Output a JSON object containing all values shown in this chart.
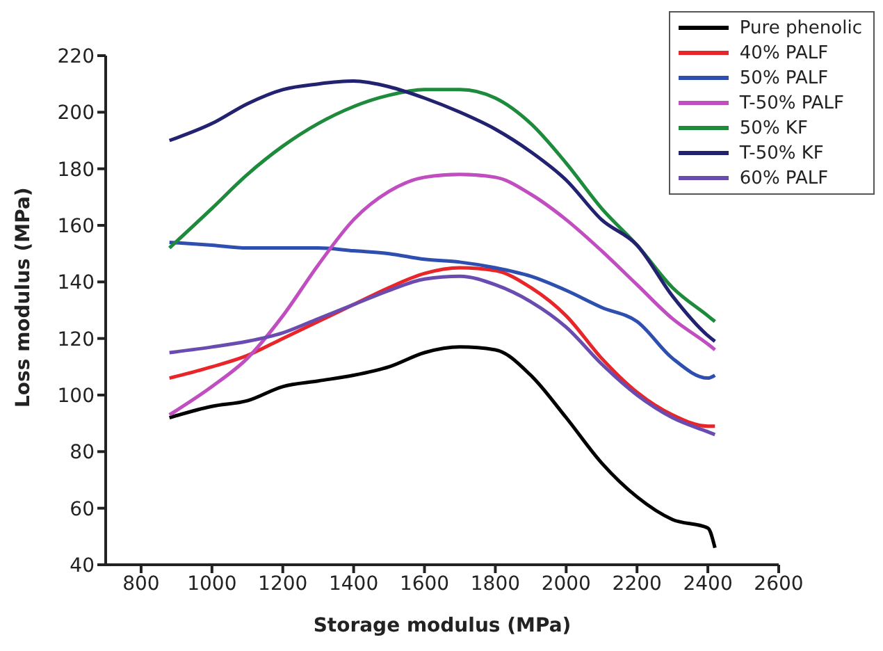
{
  "chart_data": {
    "type": "line",
    "xlabel": "Storage  modulus (MPa)",
    "ylabel": "Loss modulus (MPa)",
    "xlim": [
      700,
      2600
    ],
    "xticks": [
      800,
      1000,
      1200,
      1400,
      1600,
      1800,
      2000,
      2200,
      2400,
      2600
    ],
    "ylim": [
      40,
      220
    ],
    "yticks": [
      40,
      60,
      80,
      100,
      120,
      140,
      160,
      180,
      200,
      220
    ],
    "legend": "top right",
    "x": [
      880,
      1000,
      1100,
      1200,
      1300,
      1400,
      1500,
      1600,
      1700,
      1800,
      1900,
      2000,
      2100,
      2200,
      2300,
      2400,
      2420
    ],
    "series": [
      {
        "name": "Pure phenolic",
        "color": "#000000",
        "values": [
          92,
          96,
          98,
          103,
          105,
          107,
          110,
          115,
          117,
          116,
          107,
          92,
          76,
          64,
          56,
          53,
          46
        ]
      },
      {
        "name": "40% PALF",
        "color": "#e8262a",
        "values": [
          106,
          110,
          114,
          120,
          126,
          132,
          138,
          143,
          145,
          144,
          138,
          128,
          113,
          101,
          93,
          89,
          89
        ]
      },
      {
        "name": "50% PALF",
        "color": "#2e4eb0",
        "values": [
          154,
          153,
          152,
          152,
          152,
          151,
          150,
          148,
          147,
          145,
          142,
          137,
          131,
          126,
          113,
          106,
          107
        ]
      },
      {
        "name": "T-50% PALF",
        "color": "#c04ec0",
        "values": [
          93,
          103,
          113,
          128,
          146,
          162,
          172,
          177,
          178,
          177,
          171,
          162,
          151,
          139,
          127,
          118,
          116
        ]
      },
      {
        "name": "50% KF",
        "color": "#1e8a3c",
        "values": [
          152,
          166,
          178,
          188,
          196,
          202,
          206,
          208,
          208,
          205,
          196,
          182,
          166,
          153,
          138,
          128,
          126
        ]
      },
      {
        "name": "T-50% KF",
        "color": "#232270",
        "values": [
          190,
          196,
          203,
          208,
          210,
          211,
          209,
          205,
          200,
          194,
          186,
          176,
          162,
          153,
          135,
          121,
          119
        ]
      },
      {
        "name": "60% PALF",
        "color": "#6a4cb0",
        "values": [
          115,
          117,
          119,
          122,
          127,
          132,
          137,
          141,
          142,
          139,
          133,
          124,
          111,
          100,
          92,
          87,
          86
        ]
      }
    ]
  }
}
